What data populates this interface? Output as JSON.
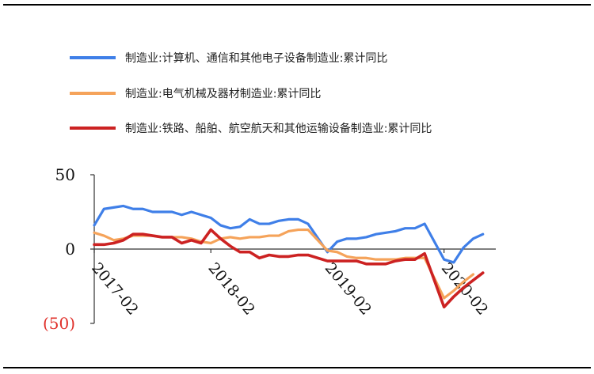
{
  "chart_data": {
    "type": "line",
    "title": "",
    "xlabel": "",
    "ylabel": "",
    "ylim": [
      -50,
      50
    ],
    "yticks": [
      {
        "value": 50,
        "label": "50",
        "color": "#111111"
      },
      {
        "value": 0,
        "label": "0",
        "color": "#111111"
      },
      {
        "value": -50,
        "label": "(50)",
        "color": "#e0302a"
      }
    ],
    "xticks": [
      {
        "index": 0,
        "label": "2017-02"
      },
      {
        "index": 12,
        "label": "2018-02"
      },
      {
        "index": 24,
        "label": "2019-02"
      },
      {
        "index": 36,
        "label": "2020-02"
      }
    ],
    "x": [
      "2017-02",
      "2017-03",
      "2017-04",
      "2017-05",
      "2017-06",
      "2017-07",
      "2017-08",
      "2017-09",
      "2017-10",
      "2017-11",
      "2017-12",
      "2018-01",
      "2018-02",
      "2018-03",
      "2018-04",
      "2018-05",
      "2018-06",
      "2018-07",
      "2018-08",
      "2018-09",
      "2018-10",
      "2018-11",
      "2018-12",
      "2019-01",
      "2019-02",
      "2019-03",
      "2019-04",
      "2019-05",
      "2019-06",
      "2019-07",
      "2019-08",
      "2019-09",
      "2019-10",
      "2019-11",
      "2019-12",
      "2020-01",
      "2020-02",
      "2020-03",
      "2020-04",
      "2020-05",
      "2020-06",
      "2020-07"
    ],
    "legend_position": "top",
    "grid": false,
    "series": [
      {
        "name": "制造业:计算机、通信和其他电子设备制造业:累计同比",
        "color": "#3f7fe8",
        "values": [
          16,
          27,
          28,
          29,
          27,
          27,
          25,
          25,
          25,
          23,
          25,
          23,
          21,
          16,
          14,
          15,
          20,
          17,
          17,
          19,
          20,
          20,
          17,
          null,
          -2,
          5,
          7,
          7,
          8,
          10,
          11,
          12,
          14,
          14,
          17,
          null,
          -7,
          -9,
          1,
          7,
          10,
          null
        ]
      },
      {
        "name": "制造业:电气机械及器材制造业:累计同比",
        "color": "#f5a35a",
        "values": [
          11,
          9,
          6,
          7,
          9,
          9,
          9,
          8,
          8,
          8,
          7,
          5,
          4,
          7,
          8,
          7,
          8,
          8,
          9,
          9,
          12,
          13,
          13,
          null,
          -1,
          -2,
          -5,
          -6,
          -6,
          -7,
          -7,
          -7,
          -6,
          -6,
          -6,
          null,
          -33,
          -28,
          -22,
          -17,
          null,
          null
        ]
      },
      {
        "name": "制造业:铁路、船舶、航空航天和其他运输设备制造业:累计同比",
        "color": "#cc2222",
        "values": [
          3,
          3,
          4,
          6,
          10,
          10,
          9,
          8,
          8,
          4,
          6,
          4,
          13,
          7,
          2,
          -2,
          -2,
          -6,
          -4,
          -5,
          -5,
          -4,
          -4,
          null,
          -8,
          -8,
          -8,
          -8,
          -10,
          -10,
          -10,
          -8,
          -7,
          -7,
          -3,
          null,
          -39,
          -32,
          -26,
          -21,
          -16,
          null
        ]
      }
    ]
  }
}
